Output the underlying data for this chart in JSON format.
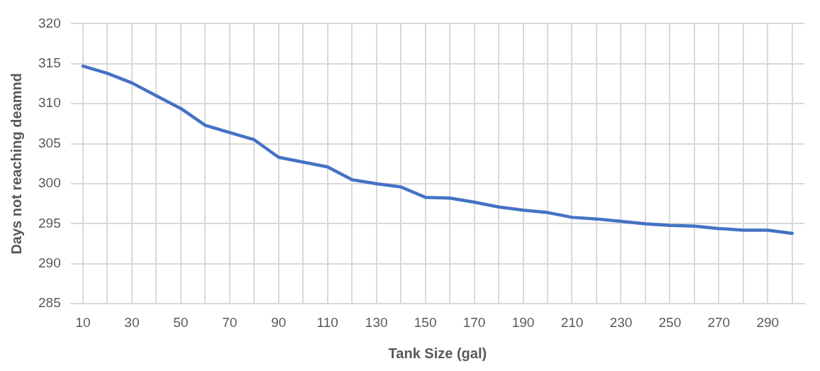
{
  "chart_data": {
    "type": "line",
    "xlabel": "Tank Size (gal)",
    "ylabel": "Days not reaching deamnd",
    "categories": [
      "10",
      null,
      "30",
      null,
      "50",
      null,
      "70",
      null,
      "90",
      null,
      "110",
      null,
      "130",
      null,
      "150",
      null,
      "170",
      null,
      "190",
      null,
      "210",
      null,
      "230",
      null,
      "250",
      null,
      "270",
      null,
      "290",
      null
    ],
    "series": [
      {
        "color": "#4472c4",
        "values": [
          314.7,
          313.8,
          312.6,
          311.0,
          309.4,
          307.3,
          306.4,
          305.5,
          303.3,
          302.7,
          302.1,
          300.5,
          300.0,
          299.6,
          298.3,
          298.2,
          297.7,
          297.1,
          296.7,
          296.4,
          295.8,
          295.6,
          295.3,
          295.0,
          294.8,
          294.7,
          294.4,
          294.2,
          294.2,
          293.8
        ]
      }
    ],
    "ylim": [
      285,
      320
    ],
    "yticks": [
      285,
      290,
      295,
      300,
      305,
      310,
      315,
      320
    ],
    "grid": true,
    "legend": false,
    "marker": "none",
    "line_style": "solid"
  }
}
